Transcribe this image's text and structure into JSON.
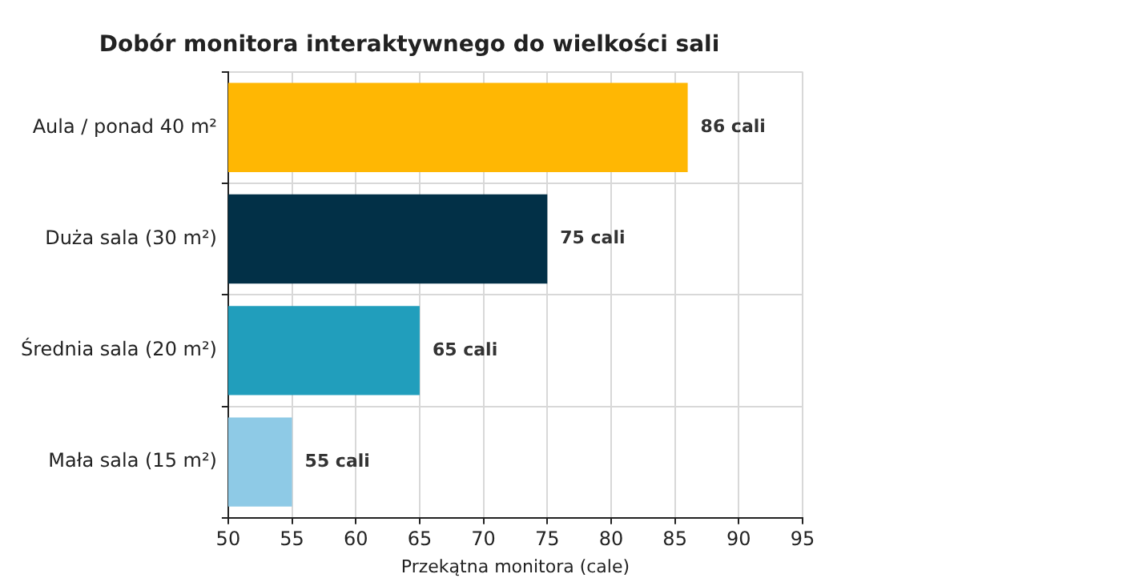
{
  "chart_data": {
    "type": "bar",
    "orientation": "horizontal",
    "title": "Dobór monitora interaktywnego do wielkości sali",
    "xlabel": "Przekątna monitora (cale)",
    "categories": [
      "Aula / ponad 40 m²",
      "Duża sala (30 m²)",
      "Średnia sala (20 m²)",
      "Mała sala (15 m²)"
    ],
    "values": [
      86,
      75,
      65,
      55
    ],
    "colors": [
      "#ffb703",
      "#023047",
      "#219ebc",
      "#8ecae6"
    ],
    "value_labels": [
      "86 cali",
      "75 cali",
      "65 cali",
      "55 cali"
    ],
    "xlim": [
      50,
      95
    ],
    "xticks": [
      50,
      55,
      60,
      65,
      70,
      75,
      80,
      85,
      90,
      95
    ],
    "grid": true
  }
}
